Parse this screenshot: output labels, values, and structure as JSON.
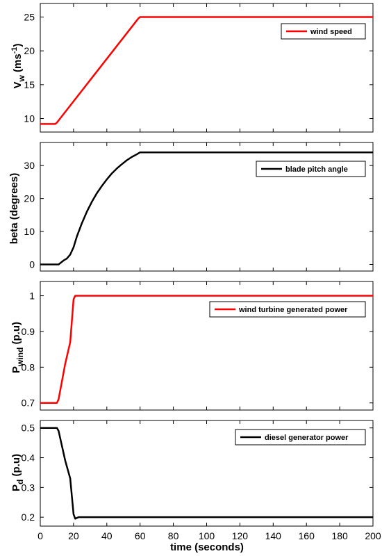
{
  "x_axis": {
    "label": "time (seconds)",
    "ticks": [
      "0",
      "20",
      "40",
      "60",
      "80",
      "100",
      "120",
      "140",
      "160",
      "180",
      "200"
    ]
  },
  "chart_data": [
    {
      "type": "line",
      "ylabel": {
        "main": "V",
        "sub": "w",
        "unit": " (ms",
        "sup": "-1",
        "close": ")"
      },
      "xlim": [
        0,
        200
      ],
      "ylim": [
        8,
        27
      ],
      "yticks": [
        10,
        15,
        20,
        25
      ],
      "grid": false,
      "legend": "top-right",
      "series": [
        {
          "name": "wind speed",
          "color": "#ff0000",
          "x": [
            0,
            9,
            10,
            59,
            60,
            200
          ],
          "y": [
            9.2,
            9.2,
            9.4,
            24.8,
            25,
            25
          ]
        }
      ]
    },
    {
      "type": "line",
      "ylabel": {
        "main": "beta (degrees)"
      },
      "xlim": [
        0,
        200
      ],
      "ylim": [
        -2,
        37
      ],
      "yticks": [
        0,
        10,
        20,
        30
      ],
      "grid": false,
      "legend": "top-right",
      "series": [
        {
          "name": "blade pitch angle",
          "color": "#000000",
          "x": [
            0,
            11,
            12,
            14,
            16,
            18,
            20,
            22,
            25,
            28,
            31,
            34,
            37,
            40,
            43,
            46,
            49,
            52,
            55,
            58,
            60,
            200
          ],
          "y": [
            0,
            0,
            0.4,
            1.2,
            1.8,
            3.0,
            5.2,
            8.5,
            12.5,
            16.0,
            19.0,
            21.6,
            23.8,
            25.8,
            27.6,
            29.1,
            30.4,
            31.6,
            32.6,
            33.4,
            34.0,
            34.0
          ]
        }
      ]
    },
    {
      "type": "line",
      "ylabel": {
        "main": "P",
        "sub": "wind",
        "unit": " (p.u)"
      },
      "xlim": [
        0,
        200
      ],
      "ylim": [
        0.68,
        1.04
      ],
      "yticks": [
        0.7,
        0.8,
        0.9,
        1
      ],
      "grid": false,
      "legend": "top-right",
      "series": [
        {
          "name": "wind turbine generated power",
          "color": "#ff0000",
          "x": [
            0,
            10,
            11,
            13,
            15,
            17,
            18,
            19,
            20,
            21,
            200
          ],
          "y": [
            0.7,
            0.7,
            0.71,
            0.76,
            0.81,
            0.85,
            0.87,
            0.93,
            0.99,
            1.0,
            1.0
          ]
        }
      ]
    },
    {
      "type": "line",
      "ylabel": {
        "main": "P",
        "sub": "d",
        "unit": " (p.u)"
      },
      "xlim": [
        0,
        200
      ],
      "ylim": [
        0.17,
        0.525
      ],
      "yticks": [
        0.2,
        0.3,
        0.4,
        0.5
      ],
      "grid": false,
      "legend": "top-right",
      "series": [
        {
          "name": "diesel generator power",
          "color": "#000000",
          "x": [
            0,
            10,
            11,
            13,
            15,
            17,
            18,
            19,
            20,
            21,
            23,
            200
          ],
          "y": [
            0.5,
            0.5,
            0.49,
            0.44,
            0.39,
            0.35,
            0.33,
            0.27,
            0.21,
            0.195,
            0.2,
            0.2
          ]
        }
      ]
    }
  ]
}
